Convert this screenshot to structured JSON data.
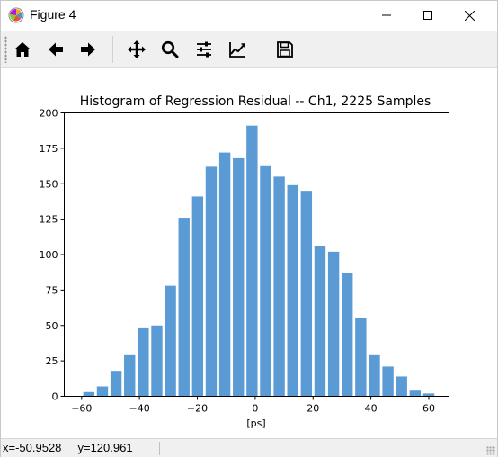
{
  "window": {
    "title": "Figure 4",
    "icon": "matplotlib-logo-icon"
  },
  "toolbar": {
    "buttons": [
      {
        "name": "home",
        "icon": "home-icon"
      },
      {
        "name": "back",
        "icon": "arrow-left-icon"
      },
      {
        "name": "forward",
        "icon": "arrow-right-icon"
      },
      {
        "name": "pan",
        "icon": "move-icon"
      },
      {
        "name": "zoom",
        "icon": "magnifier-icon"
      },
      {
        "name": "configure-subplots",
        "icon": "sliders-icon"
      },
      {
        "name": "edit-axis",
        "icon": "line-chart-icon"
      },
      {
        "name": "save",
        "icon": "floppy-disk-icon"
      }
    ]
  },
  "status": {
    "coords": "x=-50.9528     y=120.961"
  },
  "colors": {
    "bar": "#5b9bd5",
    "axis": "#000000"
  },
  "chart_data": {
    "type": "bar",
    "title": "Histogram of Regression Residual -- Ch1, 2225 Samples",
    "xlabel": "[ps]",
    "ylabel": "",
    "xlim": [
      -66,
      67
    ],
    "ylim": [
      0,
      200
    ],
    "xticks": [
      -60,
      -40,
      -20,
      0,
      20,
      40,
      60
    ],
    "yticks": [
      0,
      25,
      50,
      75,
      100,
      125,
      150,
      175,
      200
    ],
    "bin_width": 4.7,
    "bin_centers": [
      -57.5,
      -52.8,
      -48.1,
      -43.4,
      -38.7,
      -34.0,
      -29.3,
      -24.6,
      -19.9,
      -15.2,
      -10.5,
      -5.8,
      -1.1,
      3.6,
      8.3,
      13.0,
      17.7,
      22.4,
      27.1,
      31.8,
      36.5,
      41.2,
      45.9,
      50.6,
      55.3,
      60.0
    ],
    "values": [
      3,
      7,
      18,
      29,
      48,
      50,
      78,
      126,
      141,
      162,
      172,
      168,
      191,
      163,
      155,
      149,
      145,
      106,
      102,
      87,
      55,
      29,
      21,
      14,
      4,
      2
    ],
    "grid": false,
    "legend": "none"
  }
}
